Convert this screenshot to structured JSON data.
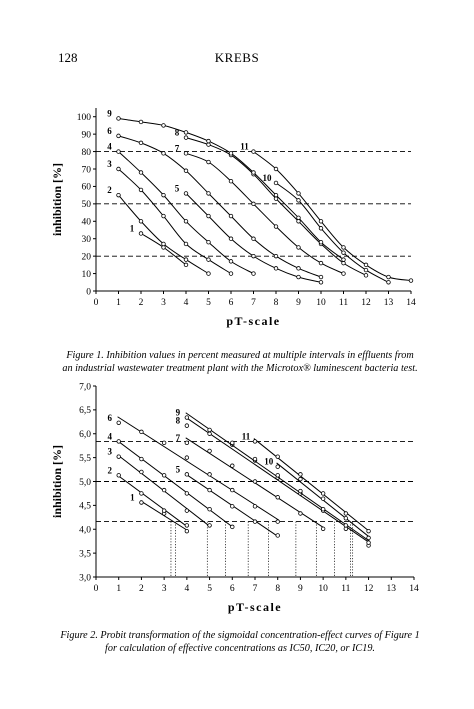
{
  "page": {
    "number": "128",
    "running_head": "KREBS"
  },
  "figure1": {
    "caption_line1": "Figure 1. Inhibition values in percent measured at multiple intervals in effluents from",
    "caption_line2": "an industrial wastewater treatment plant with the Microtox® luminescent bacteria test."
  },
  "figure2": {
    "caption_line1": "Figure 2. Probit transformation of the sigmoidal concentration-effect curves of Figure 1",
    "caption_line2": "for calculation of effective concentrations as IC50, IC20, or IC19."
  },
  "chart_data": [
    {
      "type": "line",
      "ylabel": "inhibition [%]",
      "xlabel": "pT-scale",
      "xlim": [
        0,
        14
      ],
      "ylim": [
        0,
        105
      ],
      "xticks": [
        "0",
        "1",
        "2",
        "3",
        "4",
        "5",
        "6",
        "7",
        "8",
        "9",
        "10",
        "11",
        "12",
        "13",
        "14"
      ],
      "yticks": [
        "0",
        "10",
        "20",
        "30",
        "40",
        "50",
        "60",
        "70",
        "80",
        "90",
        "100"
      ],
      "reference_lines_y": [
        80,
        50,
        20
      ],
      "series": [
        {
          "name": "1",
          "x": [
            2,
            3,
            4
          ],
          "y": [
            33,
            25,
            15
          ]
        },
        {
          "name": "2",
          "x": [
            1,
            2,
            3,
            4,
            5
          ],
          "y": [
            55,
            40,
            27,
            18,
            10
          ]
        },
        {
          "name": "3",
          "x": [
            1,
            2,
            3,
            4,
            5,
            6
          ],
          "y": [
            70,
            58,
            43,
            27,
            18,
            10
          ]
        },
        {
          "name": "4",
          "x": [
            1,
            2,
            3,
            4,
            5,
            6,
            7
          ],
          "y": [
            80,
            68,
            55,
            40,
            28,
            17,
            10
          ]
        },
        {
          "name": "5",
          "x": [
            4,
            5,
            6,
            7,
            8,
            9,
            10
          ],
          "y": [
            56,
            43,
            30,
            20,
            13,
            8,
            5
          ]
        },
        {
          "name": "6",
          "x": [
            1,
            2,
            3,
            4,
            5,
            6,
            7,
            8,
            9,
            10
          ],
          "y": [
            89,
            85,
            79,
            69,
            56,
            43,
            30,
            20,
            13,
            8
          ]
        },
        {
          "name": "7",
          "x": [
            4,
            5,
            6,
            7,
            8,
            9,
            10,
            11
          ],
          "y": [
            79,
            74,
            63,
            50,
            37,
            25,
            16,
            10
          ]
        },
        {
          "name": "8",
          "x": [
            4,
            5,
            6,
            7,
            8,
            9,
            10,
            11,
            12
          ],
          "y": [
            88,
            84,
            78,
            67,
            53,
            40,
            27,
            16,
            9
          ]
        },
        {
          "name": "9",
          "x": [
            1,
            2,
            3,
            4,
            5,
            6,
            7,
            8,
            9,
            10,
            11
          ],
          "y": [
            99,
            97,
            95,
            91,
            86,
            79,
            68,
            55,
            42,
            28,
            18
          ]
        },
        {
          "name": "10",
          "x": [
            8,
            9,
            10,
            11,
            12,
            13
          ],
          "y": [
            62,
            52,
            36,
            22,
            12,
            5
          ]
        },
        {
          "name": "11",
          "x": [
            7,
            8,
            9,
            10,
            11,
            12,
            13,
            14
          ],
          "y": [
            80,
            70,
            56,
            40,
            25,
            15,
            8,
            6
          ]
        }
      ]
    },
    {
      "type": "line",
      "ylabel": "inhibition [%]",
      "xlabel": "pT-scale",
      "xlim": [
        0,
        14
      ],
      "ylim": [
        3.0,
        7.0
      ],
      "xticks": [
        "0",
        "1",
        "2",
        "3",
        "4",
        "5",
        "6",
        "7",
        "8",
        "9",
        "10",
        "11",
        "12",
        "13",
        "14"
      ],
      "yticks": [
        "3,0",
        "3,5",
        "4,0",
        "4,5",
        "5,0",
        "5,5",
        "6,0",
        "6,5",
        "7,0"
      ],
      "reference_lines_y": [
        5.84,
        5.0,
        4.16
      ],
      "drop_lines_x": [
        3.3,
        3.5,
        4.9,
        5.7,
        6.7,
        7.6,
        8.8,
        9.7,
        10.5,
        11.2,
        11.3
      ],
      "series": [
        {
          "name": "1",
          "x": [
            2,
            3,
            4
          ],
          "y": [
            4.56,
            4.33,
            3.96
          ]
        },
        {
          "name": "2",
          "x": [
            1,
            2,
            3,
            4
          ],
          "y": [
            5.13,
            4.75,
            4.39,
            4.08
          ]
        },
        {
          "name": "3",
          "x": [
            1,
            2,
            3,
            4,
            5
          ],
          "y": [
            5.52,
            5.2,
            4.82,
            4.39,
            4.08
          ]
        },
        {
          "name": "4",
          "x": [
            1,
            2,
            3,
            4,
            5,
            6
          ],
          "y": [
            5.84,
            5.47,
            5.13,
            4.75,
            4.42,
            4.05
          ]
        },
        {
          "name": "5",
          "x": [
            4,
            5,
            6,
            7,
            8
          ],
          "y": [
            5.15,
            4.82,
            4.48,
            4.16,
            3.87
          ]
        },
        {
          "name": "6",
          "x": [
            1,
            2,
            3,
            4,
            5,
            6,
            7,
            8
          ],
          "y": [
            6.23,
            6.04,
            5.81,
            5.5,
            5.15,
            4.82,
            4.48,
            4.16
          ]
        },
        {
          "name": "7",
          "x": [
            4,
            5,
            6,
            7,
            8,
            9,
            10
          ],
          "y": [
            5.81,
            5.64,
            5.33,
            5.0,
            4.67,
            4.33,
            4.01
          ]
        },
        {
          "name": "8",
          "x": [
            4,
            5,
            6,
            7,
            8,
            9,
            10,
            11,
            12
          ],
          "y": [
            6.17,
            6.0,
            5.77,
            5.44,
            5.08,
            4.75,
            4.39,
            4.01,
            3.66
          ]
        },
        {
          "name": "9",
          "x": [
            4,
            5,
            6,
            7,
            8,
            9,
            10,
            11,
            12
          ],
          "y": [
            6.34,
            6.08,
            5.81,
            5.47,
            5.13,
            4.8,
            4.42,
            4.08,
            3.72
          ]
        },
        {
          "name": "10",
          "x": [
            8,
            9,
            10,
            11,
            12
          ],
          "y": [
            5.31,
            5.05,
            4.64,
            4.23,
            3.82
          ]
        },
        {
          "name": "11",
          "x": [
            7,
            8,
            9,
            10,
            11,
            12
          ],
          "y": [
            5.84,
            5.52,
            5.15,
            4.75,
            4.33,
            3.96
          ]
        }
      ]
    }
  ]
}
